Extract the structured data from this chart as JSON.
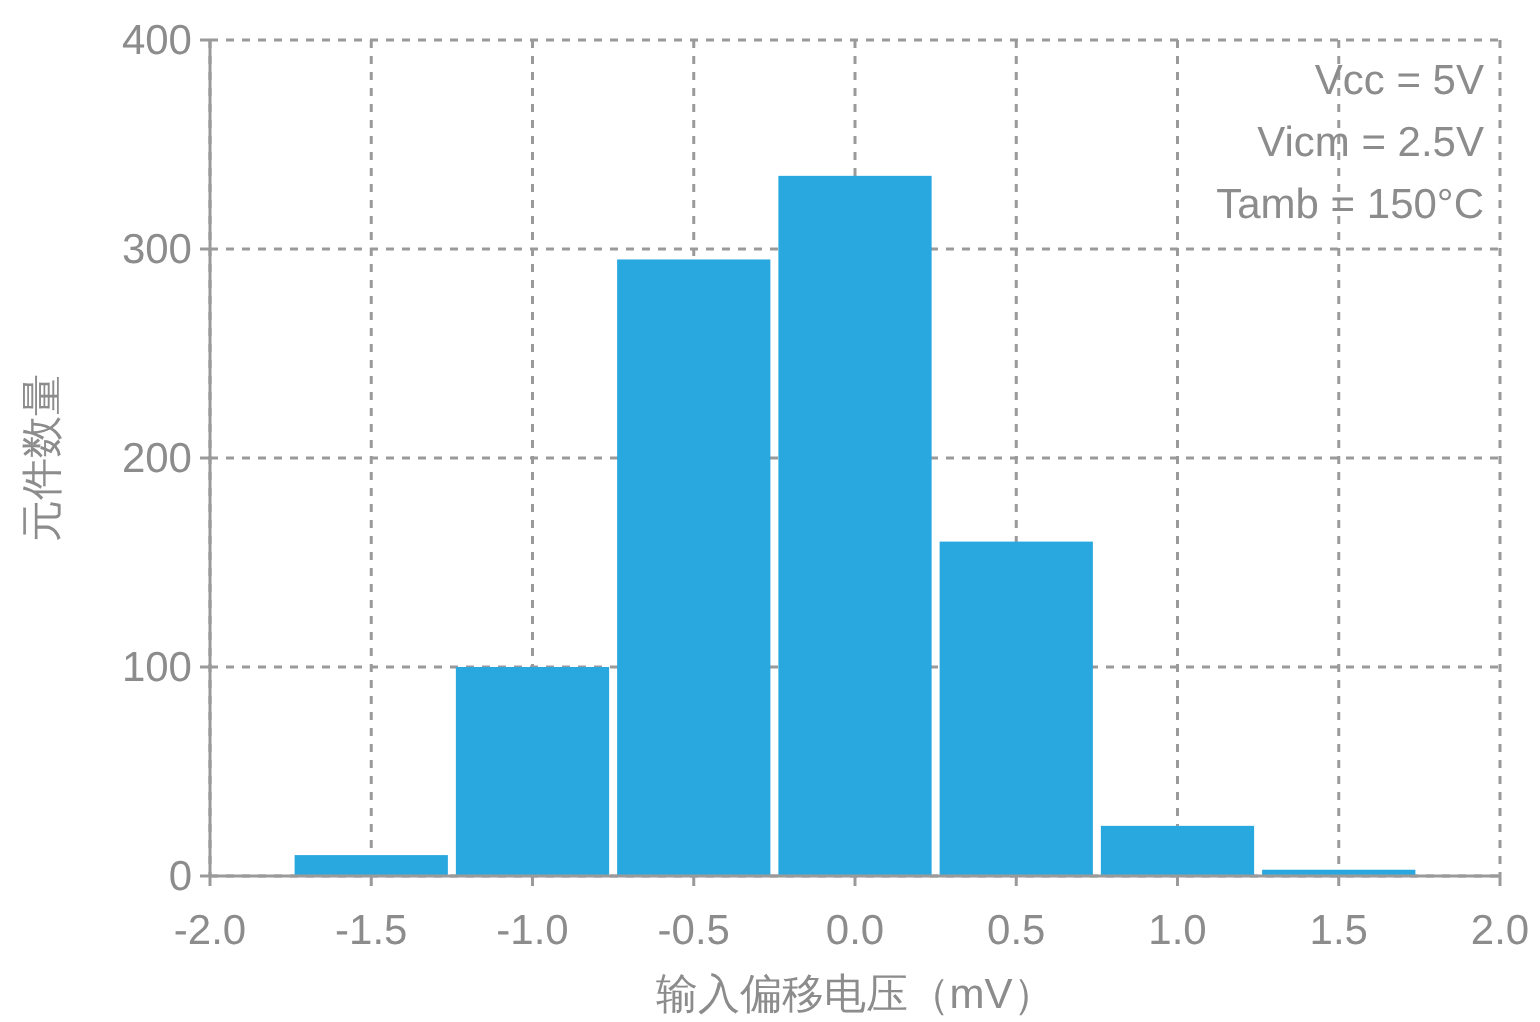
{
  "chart_data": {
    "type": "histogram",
    "xlabel": "输入偏移电压（mV）",
    "ylabel": "元件数量",
    "bins": [
      -1.75,
      -1.25,
      -0.75,
      -0.25,
      0.25,
      0.75,
      1.25,
      1.75
    ],
    "values": [
      10,
      100,
      295,
      335,
      160,
      24,
      3
    ],
    "color": "#29a8e0",
    "xlim": [
      -2,
      2
    ],
    "ylim": [
      0,
      400
    ],
    "xticks": [
      {
        "value": -2,
        "label": "-2.0"
      },
      {
        "value": -1.5,
        "label": "-1.5"
      },
      {
        "value": -1,
        "label": "-1.0"
      },
      {
        "value": -0.5,
        "label": "-0.5"
      },
      {
        "value": 0,
        "label": "0.0"
      },
      {
        "value": 0.5,
        "label": "0.5"
      },
      {
        "value": 1,
        "label": "1.0"
      },
      {
        "value": 1.5,
        "label": "1.5"
      },
      {
        "value": 2,
        "label": "2.0"
      }
    ],
    "yticks": [
      0,
      100,
      200,
      300,
      400
    ],
    "grid": true,
    "annotations": [
      "Vcc = 5V",
      "Vicm = 2.5V",
      "Tamb = 150°C"
    ]
  }
}
